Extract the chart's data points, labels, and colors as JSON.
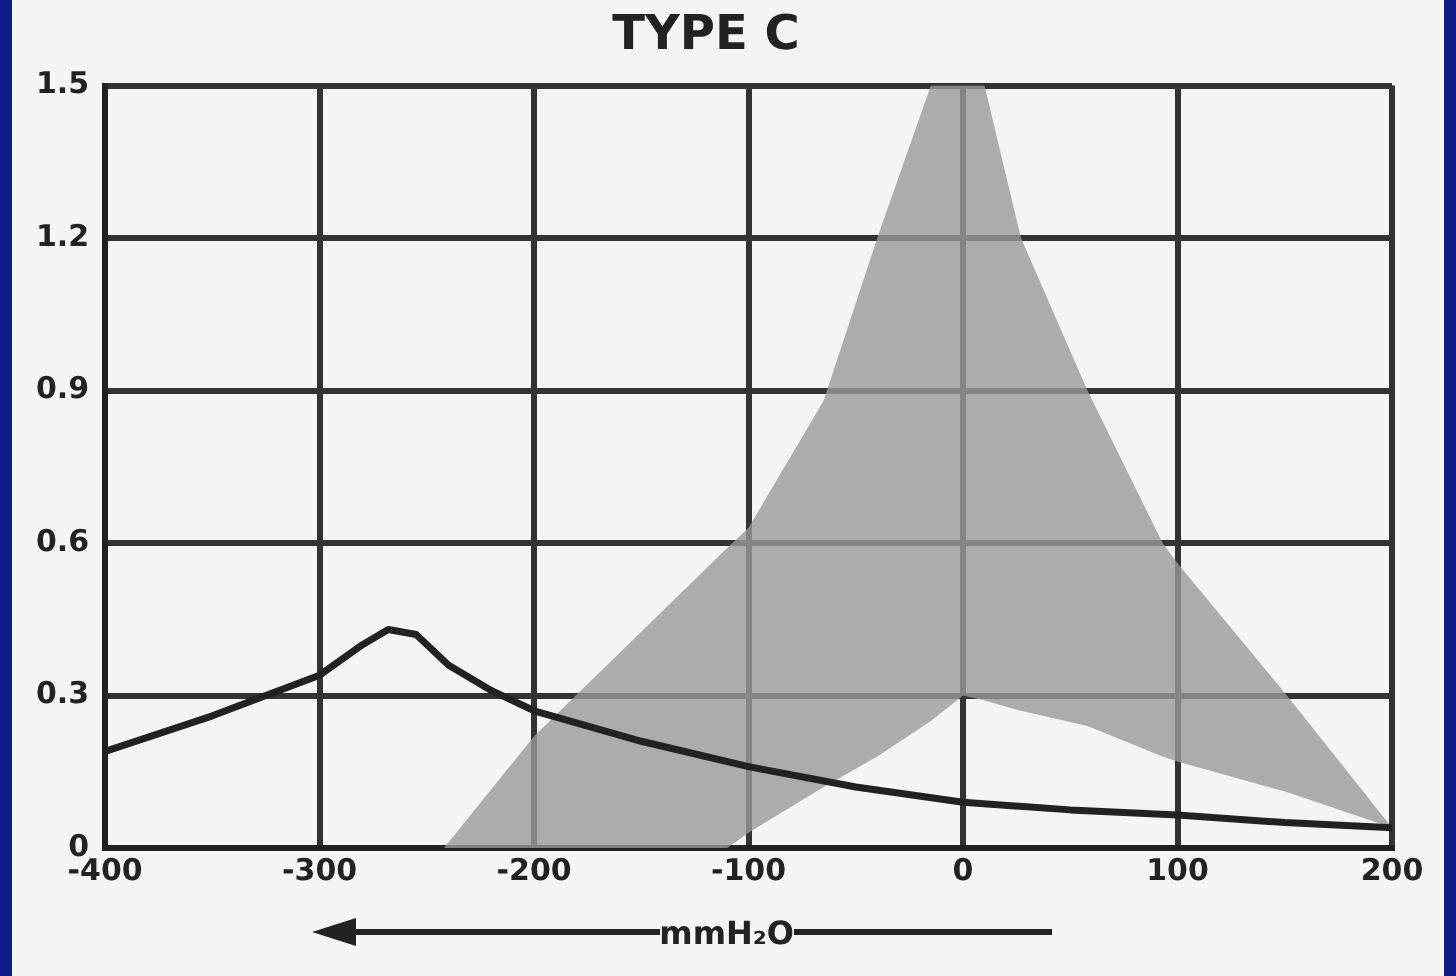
{
  "chart_data": {
    "type": "line",
    "title": "TYPE C",
    "xlabel": "mmH₂O",
    "xlim": [
      -400,
      200
    ],
    "ylim": [
      0,
      1.5
    ],
    "xticks": [
      -400,
      -300,
      -200,
      -100,
      0,
      100,
      200
    ],
    "yticks": [
      0,
      0.3,
      0.6,
      0.9,
      1.2,
      1.5
    ],
    "grid": true,
    "series": [
      {
        "color": "#9a9a9a",
        "x": [
          -242,
          -200,
          -110,
          -100,
          -65,
          -40,
          -15,
          0,
          10,
          27,
          58,
          93,
          100,
          151,
          200
        ],
        "values": [
          null,
          null,
          null,
          null,
          null,
          null,
          null,
          null,
          null,
          null,
          null,
          null,
          null,
          null,
          null
        ],
        "upper": [
          0,
          0.22,
          0.59,
          0.63,
          0.88,
          1.2,
          1.5,
          1.5,
          1.5,
          1.2,
          0.9,
          0.6,
          0.56,
          0.3,
          0.04
        ],
        "lower": [
          0,
          0,
          0,
          0.03,
          0.12,
          0.18,
          0.25,
          0.3,
          0.29,
          0.27,
          0.24,
          0.18,
          0.17,
          0.11,
          0.04
        ]
      },
      {
        "type": "line",
        "color": "#222222",
        "x": [
          -400,
          -350,
          -300,
          -280,
          -268,
          -255,
          -240,
          -220,
          -200,
          -150,
          -100,
          -50,
          0,
          50,
          100,
          150,
          200
        ],
        "values": [
          0.19,
          0.26,
          0.34,
          0.4,
          0.43,
          0.42,
          0.36,
          0.31,
          0.27,
          0.21,
          0.16,
          0.12,
          0.09,
          0.075,
          0.065,
          0.05,
          0.04
        ]
      }
    ]
  }
}
